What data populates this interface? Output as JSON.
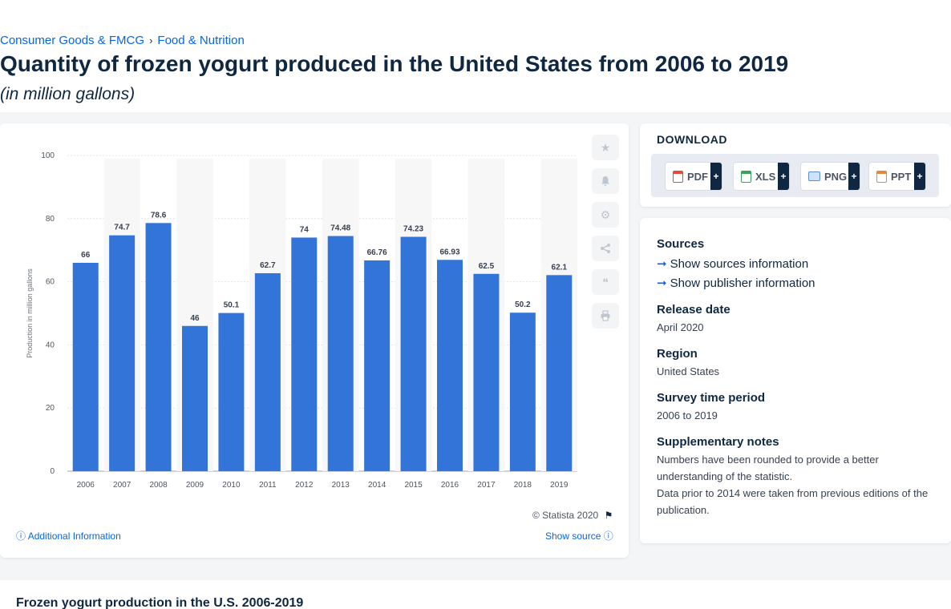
{
  "breadcrumb": {
    "item1": "Consumer Goods & FMCG",
    "sep": "›",
    "item2": "Food & Nutrition"
  },
  "page": {
    "title": "Quantity of frozen yogurt produced in the United States from 2006 to 2019",
    "subtitle": "(in million gallons)"
  },
  "chart_credit": "© Statista 2020",
  "additional_info": "Additional Information",
  "show_source": "Show source",
  "download": {
    "title": "DOWNLOAD",
    "buttons": [
      "PDF",
      "XLS",
      "PNG",
      "PPT"
    ],
    "plus": "+"
  },
  "info": {
    "sources_h": "Sources",
    "show_sources": "Show sources information",
    "show_publisher": "Show publisher information",
    "release_h": "Release date",
    "release_v": "April 2020",
    "region_h": "Region",
    "region_v": "United States",
    "period_h": "Survey time period",
    "period_v": "2006 to 2019",
    "notes_h": "Supplementary notes",
    "notes_v1": "Numbers have been rounded to provide a better understanding of the statistic.",
    "notes_v2": "Data prior to 2014 were taken from previous editions of the publication."
  },
  "bottom_title": "Frozen yogurt production in the U.S. 2006-2019",
  "colors": {
    "bar": "#3374d9",
    "accent": "#0666e5",
    "text": "#0f2741"
  },
  "chart_data": {
    "type": "bar",
    "categories": [
      "2006",
      "2007",
      "2008",
      "2009",
      "2010",
      "2011",
      "2012",
      "2013",
      "2014",
      "2015",
      "2016",
      "2017",
      "2018",
      "2019"
    ],
    "values": [
      66,
      74.7,
      78.6,
      46,
      50.1,
      62.7,
      74,
      74.48,
      66.76,
      74.23,
      66.93,
      62.5,
      50.2,
      62.1
    ],
    "value_labels": [
      "66",
      "74.7",
      "78.6",
      "46",
      "50.1",
      "62.7",
      "74",
      "74.48",
      "66.76",
      "74.23",
      "66.93",
      "62.5",
      "50.2",
      "62.1"
    ],
    "ylabel": "Production in million gallons",
    "ylim": [
      0,
      100
    ],
    "yticks": [
      "0",
      "20",
      "40",
      "60",
      "80",
      "100"
    ],
    "grid": true
  }
}
